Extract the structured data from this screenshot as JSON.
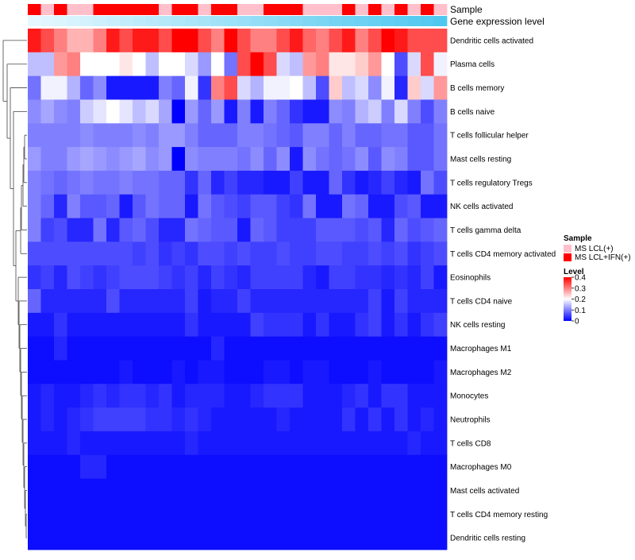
{
  "chart_data": {
    "type": "heatmap",
    "annotation_labels": {
      "sample": "Sample",
      "gene_expression": "Gene expression level"
    },
    "sample_groups": [
      "MS LCL(+)",
      "MS LCL+IFN(+)"
    ],
    "sample_group_colors": [
      "#ffc0cb",
      "#ff0000"
    ],
    "sample_annotation": [
      1,
      0,
      1,
      0,
      0,
      1,
      1,
      1,
      1,
      1,
      0,
      1,
      1,
      0,
      1,
      1,
      0,
      0,
      1,
      1,
      1,
      0,
      0,
      0,
      1,
      0,
      1,
      0,
      1,
      0,
      1,
      0
    ],
    "gene_expression_colors": [
      "#e6f8ff",
      "#4fc8ef"
    ],
    "rows": [
      "Dendritic cells activated",
      "Plasma cells",
      "B cells memory",
      "B cells naive",
      "T cells follicular helper",
      "Mast cells resting",
      "T cells regulatory  Tregs",
      "NK cells activated",
      "T cells gamma delta",
      "T cells CD4 memory activated",
      "Eosinophils",
      "T cells CD4 naive",
      "NK cells resting",
      "Macrophages M1",
      "Macrophages M2",
      "Monocytes",
      "Neutrophils",
      "T cells CD8",
      "Macrophages M0",
      "Mast cells activated",
      "T cells CD4 memory resting",
      "Dendritic cells resting"
    ],
    "values": [
      [
        0.38,
        0.34,
        0.3,
        0.26,
        0.26,
        0.3,
        0.38,
        0.34,
        0.38,
        0.38,
        0.34,
        0.4,
        0.4,
        0.34,
        0.3,
        0.4,
        0.34,
        0.3,
        0.3,
        0.34,
        0.38,
        0.32,
        0.3,
        0.34,
        0.38,
        0.3,
        0.34,
        0.4,
        0.38,
        0.34,
        0.34,
        0.34
      ],
      [
        0.15,
        0.15,
        0.28,
        0.3,
        0.2,
        0.2,
        0.2,
        0.22,
        0.2,
        0.15,
        0.2,
        0.2,
        0.17,
        0.12,
        0.2,
        0.09,
        0.34,
        0.4,
        0.34,
        0.17,
        0.15,
        0.28,
        0.3,
        0.22,
        0.22,
        0.24,
        0.28,
        0.2,
        0.06,
        0.17,
        0.34,
        0.19
      ],
      [
        0.09,
        0.19,
        0.19,
        0.14,
        0.08,
        0.11,
        0.02,
        0.02,
        0.02,
        0.02,
        0.1,
        0.08,
        0.19,
        0.04,
        0.3,
        0.34,
        0.17,
        0.14,
        0.19,
        0.19,
        0.2,
        0.15,
        0.06,
        0.24,
        0.15,
        0.17,
        0.11,
        0.19,
        0.03,
        0.24,
        0.17,
        0.28
      ],
      [
        0.11,
        0.13,
        0.11,
        0.1,
        0.16,
        0.18,
        0.2,
        0.18,
        0.15,
        0.17,
        0.13,
        0.0,
        0.12,
        0.08,
        0.12,
        0.02,
        0.1,
        0.02,
        0.1,
        0.08,
        0.04,
        0.02,
        0.02,
        0.11,
        0.1,
        0.14,
        0.16,
        0.1,
        0.17,
        0.1,
        0.06,
        0.1
      ],
      [
        0.1,
        0.1,
        0.1,
        0.1,
        0.11,
        0.1,
        0.1,
        0.1,
        0.11,
        0.1,
        0.12,
        0.12,
        0.1,
        0.08,
        0.08,
        0.08,
        0.1,
        0.1,
        0.09,
        0.08,
        0.07,
        0.1,
        0.1,
        0.08,
        0.1,
        0.08,
        0.08,
        0.09,
        0.09,
        0.07,
        0.07,
        0.09
      ],
      [
        0.12,
        0.1,
        0.1,
        0.12,
        0.13,
        0.12,
        0.11,
        0.12,
        0.13,
        0.11,
        0.12,
        0.0,
        0.11,
        0.1,
        0.1,
        0.1,
        0.09,
        0.11,
        0.08,
        0.11,
        0.02,
        0.11,
        0.09,
        0.08,
        0.09,
        0.11,
        0.07,
        0.11,
        0.1,
        0.07,
        0.07,
        0.09
      ],
      [
        0.1,
        0.09,
        0.08,
        0.09,
        0.1,
        0.09,
        0.09,
        0.1,
        0.09,
        0.09,
        0.08,
        0.08,
        0.04,
        0.08,
        0.03,
        0.05,
        0.03,
        0.03,
        0.02,
        0.02,
        0.05,
        0.02,
        0.02,
        0.08,
        0.04,
        0.02,
        0.03,
        0.05,
        0.03,
        0.02,
        0.09,
        0.06
      ],
      [
        0.1,
        0.08,
        0.03,
        0.1,
        0.07,
        0.07,
        0.08,
        0.02,
        0.07,
        0.09,
        0.08,
        0.08,
        0.02,
        0.09,
        0.07,
        0.06,
        0.05,
        0.07,
        0.07,
        0.05,
        0.04,
        0.09,
        0.02,
        0.02,
        0.09,
        0.08,
        0.02,
        0.02,
        0.06,
        0.07,
        0.02,
        0.02
      ],
      [
        0.1,
        0.05,
        0.06,
        0.03,
        0.03,
        0.09,
        0.03,
        0.07,
        0.08,
        0.06,
        0.03,
        0.03,
        0.09,
        0.08,
        0.07,
        0.07,
        0.02,
        0.08,
        0.07,
        0.05,
        0.05,
        0.05,
        0.07,
        0.07,
        0.07,
        0.06,
        0.07,
        0.03,
        0.08,
        0.06,
        0.07,
        0.08
      ],
      [
        0.06,
        0.06,
        0.06,
        0.06,
        0.06,
        0.06,
        0.06,
        0.06,
        0.05,
        0.06,
        0.04,
        0.05,
        0.04,
        0.06,
        0.06,
        0.05,
        0.06,
        0.05,
        0.05,
        0.06,
        0.05,
        0.05,
        0.06,
        0.06,
        0.05,
        0.05,
        0.06,
        0.05,
        0.06,
        0.04,
        0.05,
        0.06
      ],
      [
        0.04,
        0.05,
        0.03,
        0.06,
        0.05,
        0.04,
        0.05,
        0.06,
        0.06,
        0.06,
        0.05,
        0.04,
        0.05,
        0.03,
        0.05,
        0.04,
        0.03,
        0.05,
        0.05,
        0.05,
        0.05,
        0.03,
        0.02,
        0.05,
        0.05,
        0.04,
        0.04,
        0.03,
        0.04,
        0.03,
        0.05,
        0.02
      ],
      [
        0.08,
        0.03,
        0.03,
        0.03,
        0.03,
        0.03,
        0.06,
        0.03,
        0.03,
        0.03,
        0.03,
        0.03,
        0.05,
        0.02,
        0.03,
        0.03,
        0.05,
        0.03,
        0.03,
        0.03,
        0.03,
        0.03,
        0.03,
        0.03,
        0.03,
        0.03,
        0.05,
        0.02,
        0.05,
        0.03,
        0.03,
        0.03
      ],
      [
        0.02,
        0.02,
        0.04,
        0.02,
        0.02,
        0.02,
        0.02,
        0.02,
        0.02,
        0.02,
        0.02,
        0.02,
        0.04,
        0.02,
        0.02,
        0.02,
        0.02,
        0.05,
        0.04,
        0.04,
        0.04,
        0.02,
        0.04,
        0.02,
        0.02,
        0.04,
        0.05,
        0.02,
        0.04,
        0.02,
        0.04,
        0.05
      ],
      [
        0.01,
        0.01,
        0.03,
        0.01,
        0.01,
        0.01,
        0.01,
        0.01,
        0.01,
        0.01,
        0.01,
        0.01,
        0.01,
        0.01,
        0.03,
        0.01,
        0.01,
        0.01,
        0.01,
        0.01,
        0.01,
        0.01,
        0.01,
        0.01,
        0.01,
        0.01,
        0.01,
        0.01,
        0.01,
        0.01,
        0.01,
        0.01
      ],
      [
        0.01,
        0.01,
        0.01,
        0.01,
        0.01,
        0.01,
        0.01,
        0.02,
        0.01,
        0.01,
        0.01,
        0.02,
        0.01,
        0.02,
        0.02,
        0.01,
        0.01,
        0.01,
        0.02,
        0.02,
        0.01,
        0.02,
        0.02,
        0.01,
        0.01,
        0.01,
        0.02,
        0.01,
        0.01,
        0.01,
        0.01,
        0.02
      ],
      [
        0.02,
        0.03,
        0.02,
        0.02,
        0.03,
        0.04,
        0.03,
        0.04,
        0.04,
        0.03,
        0.04,
        0.02,
        0.03,
        0.03,
        0.03,
        0.02,
        0.02,
        0.03,
        0.04,
        0.04,
        0.04,
        0.02,
        0.02,
        0.02,
        0.03,
        0.04,
        0.02,
        0.04,
        0.04,
        0.02,
        0.02,
        0.02
      ],
      [
        0.02,
        0.03,
        0.02,
        0.03,
        0.04,
        0.05,
        0.05,
        0.05,
        0.05,
        0.04,
        0.04,
        0.03,
        0.04,
        0.03,
        0.02,
        0.02,
        0.02,
        0.02,
        0.02,
        0.03,
        0.02,
        0.02,
        0.02,
        0.02,
        0.04,
        0.02,
        0.04,
        0.02,
        0.04,
        0.02,
        0.03,
        0.02
      ],
      [
        0.02,
        0.02,
        0.02,
        0.03,
        0.02,
        0.02,
        0.02,
        0.02,
        0.02,
        0.02,
        0.02,
        0.02,
        0.03,
        0.02,
        0.02,
        0.02,
        0.02,
        0.02,
        0.02,
        0.02,
        0.02,
        0.02,
        0.02,
        0.02,
        0.02,
        0.02,
        0.02,
        0.02,
        0.02,
        0.03,
        0.02,
        0.02
      ],
      [
        0.01,
        0.01,
        0.01,
        0.01,
        0.03,
        0.03,
        0.01,
        0.01,
        0.01,
        0.01,
        0.01,
        0.01,
        0.01,
        0.01,
        0.01,
        0.01,
        0.01,
        0.01,
        0.01,
        0.01,
        0.01,
        0.01,
        0.01,
        0.01,
        0.01,
        0.01,
        0.01,
        0.01,
        0.01,
        0.01,
        0.01,
        0.01
      ],
      [
        0.01,
        0.01,
        0.01,
        0.01,
        0.01,
        0.01,
        0.01,
        0.01,
        0.01,
        0.01,
        0.01,
        0.01,
        0.01,
        0.01,
        0.01,
        0.01,
        0.01,
        0.01,
        0.01,
        0.01,
        0.01,
        0.01,
        0.01,
        0.01,
        0.01,
        0.01,
        0.01,
        0.01,
        0.01,
        0.01,
        0.01,
        0.01
      ],
      [
        0.01,
        0.01,
        0.01,
        0.01,
        0.01,
        0.01,
        0.01,
        0.01,
        0.01,
        0.01,
        0.01,
        0.01,
        0.01,
        0.01,
        0.01,
        0.01,
        0.01,
        0.01,
        0.01,
        0.01,
        0.01,
        0.01,
        0.01,
        0.01,
        0.01,
        0.01,
        0.01,
        0.01,
        0.01,
        0.01,
        0.01,
        0.01
      ],
      [
        0.01,
        0.01,
        0.01,
        0.01,
        0.01,
        0.01,
        0.01,
        0.01,
        0.01,
        0.01,
        0.01,
        0.01,
        0.01,
        0.01,
        0.01,
        0.01,
        0.01,
        0.01,
        0.01,
        0.01,
        0.01,
        0.01,
        0.01,
        0.01,
        0.01,
        0.01,
        0.01,
        0.01,
        0.01,
        0.01,
        0.01,
        0.01
      ]
    ],
    "color_scale": {
      "min": 0,
      "mid": 0.2,
      "max": 0.4,
      "colors": [
        "#0000ff",
        "#ffffff",
        "#ff0000"
      ]
    },
    "legend": {
      "sample_title": "Sample",
      "level_title": "Level",
      "level_ticks": [
        "0.4",
        "0.3",
        "0.2",
        "0.1",
        "0"
      ],
      "level_tick_values": [
        0.4,
        0.3,
        0.2,
        0.1,
        0
      ],
      "position": "right"
    },
    "row_dendrogram": true
  }
}
